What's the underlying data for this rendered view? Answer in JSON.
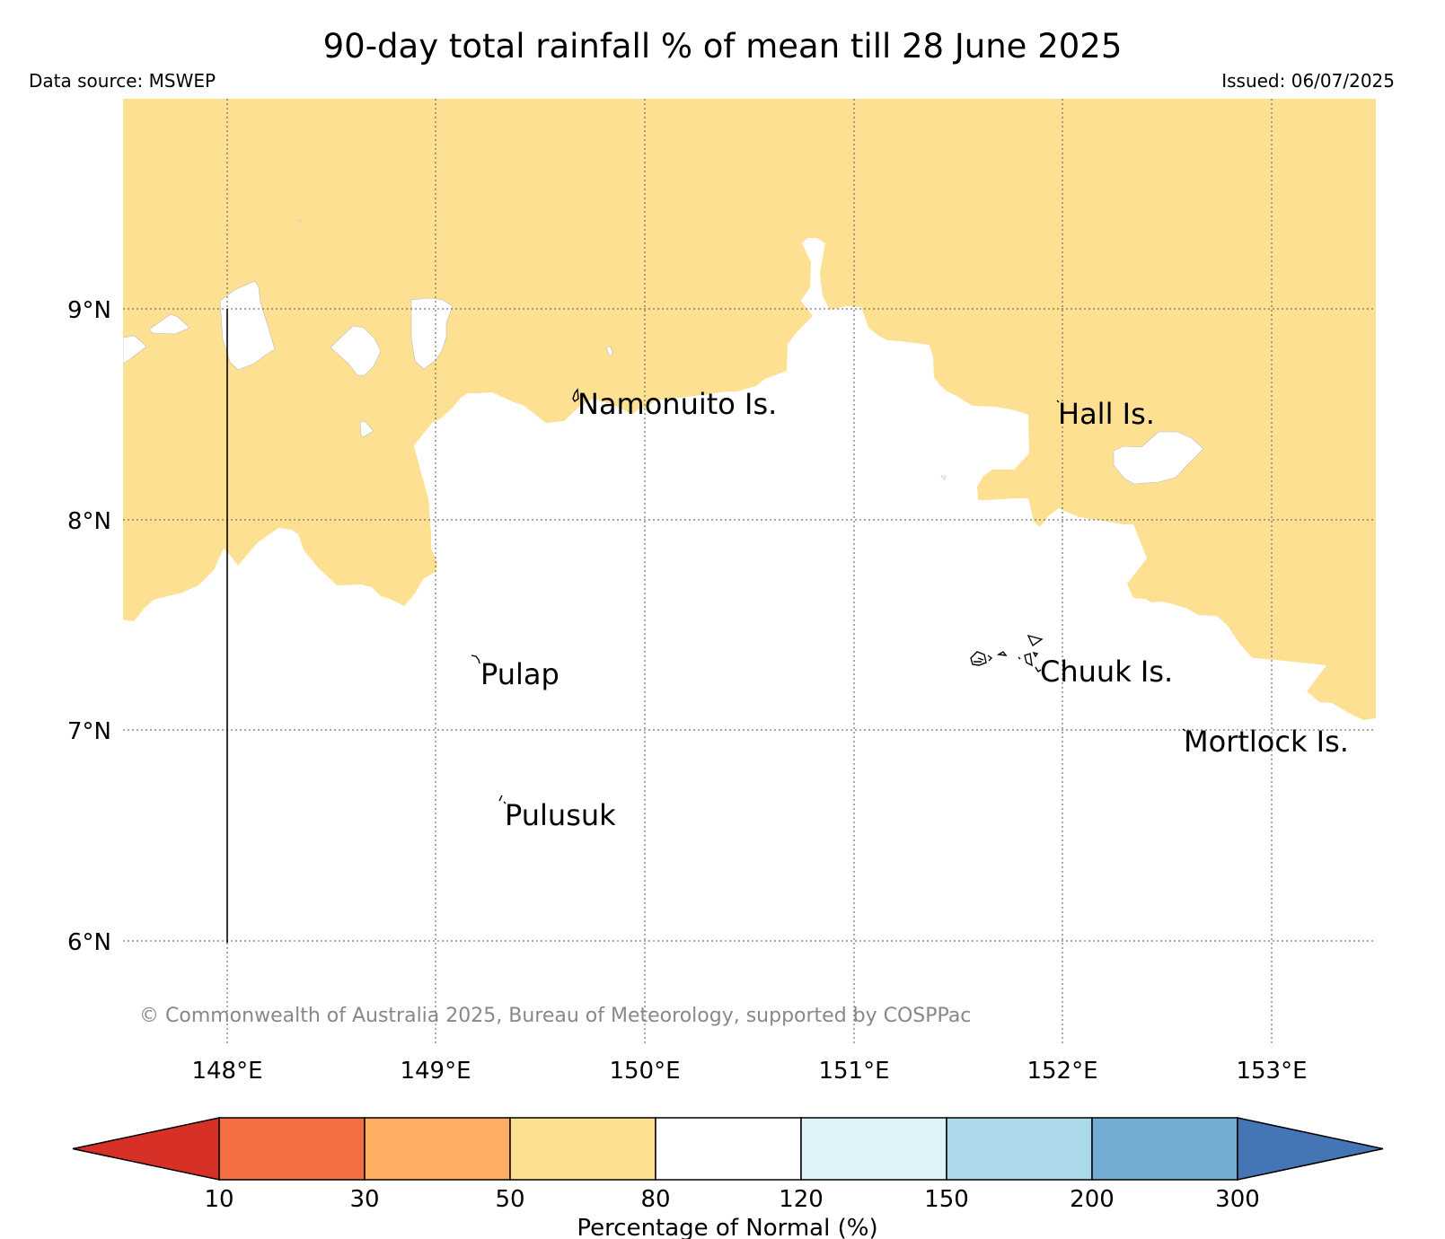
{
  "title": "90-day total rainfall % of mean till 28 June 2025",
  "data_source": "Data source: MSWEP",
  "issued": "Issued: 06/07/2025",
  "copyright": "© Commonwealth of Australia 2025, Bureau of Meteorology, supported by COSPPac",
  "map": {
    "lat_labels": [
      "9°N",
      "8°N",
      "7°N",
      "6°N"
    ],
    "lon_labels": [
      "148°E",
      "149°E",
      "150°E",
      "151°E",
      "152°E",
      "153°E"
    ],
    "places": [
      {
        "name": "Namonuito Is."
      },
      {
        "name": "Hall Is."
      },
      {
        "name": "Pulap"
      },
      {
        "name": "Chuuk Is."
      },
      {
        "name": "Mortlock Is."
      },
      {
        "name": "Pulusuk"
      }
    ],
    "shaded_category": "50-80",
    "colors": {
      "dry_50_80": "#fde092",
      "background": "#ffffff"
    }
  },
  "colorbar": {
    "label": "Percentage of Normal (%)",
    "ticks": [
      "10",
      "30",
      "50",
      "80",
      "120",
      "150",
      "200",
      "300"
    ],
    "under_color": "#d73027",
    "over_color": "#4575b4",
    "bins": [
      {
        "range": "10-30",
        "color": "#f46d43"
      },
      {
        "range": "30-50",
        "color": "#fdae61"
      },
      {
        "range": "50-80",
        "color": "#fee090"
      },
      {
        "range": "80-120",
        "color": "#ffffff"
      },
      {
        "range": "120-150",
        "color": "#e0f3f8"
      },
      {
        "range": "150-200",
        "color": "#abd9e9"
      },
      {
        "range": "200-300",
        "color": "#74add1"
      }
    ]
  }
}
